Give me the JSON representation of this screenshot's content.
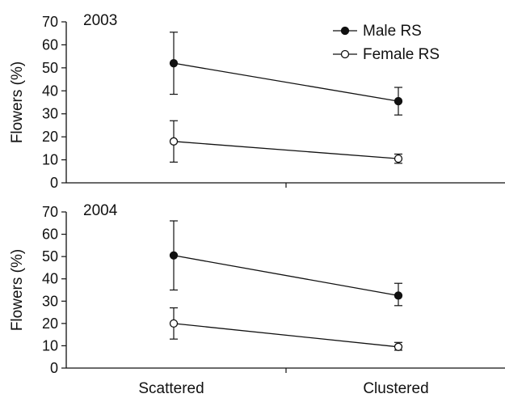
{
  "chart_data": [
    {
      "type": "line",
      "panel_label": "2003",
      "ylabel": "Flowers (%)",
      "ylim": [
        0,
        70
      ],
      "yticks": [
        0,
        10,
        20,
        30,
        40,
        50,
        60,
        70
      ],
      "categories": [
        "Scattered",
        "Clustered"
      ],
      "series": [
        {
          "name": "Male RS",
          "marker": "filled-circle",
          "values": [
            52,
            35.5
          ],
          "err_low": [
            38.5,
            29.5
          ],
          "err_high": [
            65.5,
            41.5
          ]
        },
        {
          "name": "Female RS",
          "marker": "open-circle",
          "values": [
            18,
            10.5
          ],
          "err_low": [
            9,
            8.5
          ],
          "err_high": [
            27,
            12.5
          ]
        }
      ],
      "legend_position": "top-right",
      "grid": false
    },
    {
      "type": "line",
      "panel_label": "2004",
      "ylabel": "Flowers (%)",
      "ylim": [
        0,
        70
      ],
      "yticks": [
        0,
        10,
        20,
        30,
        40,
        50,
        60,
        70
      ],
      "categories": [
        "Scattered",
        "Clustered"
      ],
      "series": [
        {
          "name": "Male RS",
          "marker": "filled-circle",
          "values": [
            50.5,
            32.5
          ],
          "err_low": [
            35,
            28
          ],
          "err_high": [
            66,
            38
          ]
        },
        {
          "name": "Female RS",
          "marker": "open-circle",
          "values": [
            20,
            9.5
          ],
          "err_low": [
            13,
            8
          ],
          "err_high": [
            27,
            11.5
          ]
        }
      ],
      "grid": false
    }
  ]
}
